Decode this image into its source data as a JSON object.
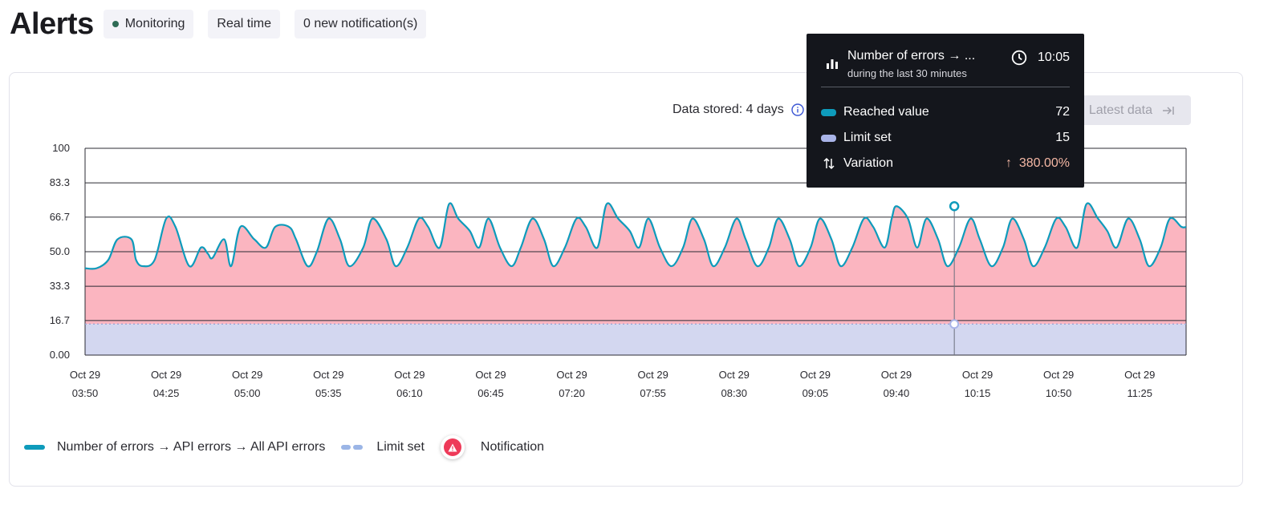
{
  "header": {
    "title": "Alerts",
    "status_label": "Monitoring",
    "mode_label": "Real time",
    "notifications_label": "0 new notification(s)"
  },
  "toolbar": {
    "data_stored": "Data stored: 4 days",
    "latest_data_label": "Latest data"
  },
  "tooltip": {
    "title": "Number of errors → ...",
    "subtitle": "during the last 30 minutes",
    "time": "10:05",
    "rows": [
      {
        "label": "Reached value",
        "value": "72",
        "color": "#0e9bbb"
      },
      {
        "label": "Limit set",
        "value": "15",
        "color": "#a9b4e8"
      },
      {
        "label": "Variation",
        "value": "380.00%",
        "arrow": "↑"
      }
    ]
  },
  "legend": {
    "series_label": "Number of errors → API errors → All API errors",
    "limit_label": "Limit set",
    "notification_label": "Notification"
  },
  "colors": {
    "line": "#0e9bbb",
    "area_fill": "#fbb5c0",
    "limit_fill": "#d3d7f0",
    "limit_line": "#9aa6d8",
    "notification": "#ee3a59"
  },
  "chart_data": {
    "type": "area",
    "y_ticks": [
      "100",
      "83.3",
      "66.7",
      "50.0",
      "33.3",
      "16.7",
      "0.00"
    ],
    "ylim": [
      0,
      100
    ],
    "x_ticks": [
      {
        "date": "Oct 29",
        "time": "03:50"
      },
      {
        "date": "Oct 29",
        "time": "04:25"
      },
      {
        "date": "Oct 29",
        "time": "05:00"
      },
      {
        "date": "Oct 29",
        "time": "05:35"
      },
      {
        "date": "Oct 29",
        "time": "06:10"
      },
      {
        "date": "Oct 29",
        "time": "06:45"
      },
      {
        "date": "Oct 29",
        "time": "07:20"
      },
      {
        "date": "Oct 29",
        "time": "07:55"
      },
      {
        "date": "Oct 29",
        "time": "08:30"
      },
      {
        "date": "Oct 29",
        "time": "09:05"
      },
      {
        "date": "Oct 29",
        "time": "09:40"
      },
      {
        "date": "Oct 29",
        "time": "10:15"
      },
      {
        "date": "Oct 29",
        "time": "10:50"
      },
      {
        "date": "Oct 29",
        "time": "11:25"
      }
    ],
    "x_start": "03:50",
    "x_end": "11:45",
    "limit": 15,
    "highlight": {
      "time": "10:05",
      "value": 72,
      "limit": 15
    },
    "series": [
      {
        "points": [
          [
            "03:50",
            42
          ],
          [
            "03:55",
            42
          ],
          [
            "04:00",
            46
          ],
          [
            "04:04",
            56
          ],
          [
            "04:10",
            56
          ],
          [
            "04:12",
            46
          ],
          [
            "04:15",
            43
          ],
          [
            "04:20",
            46
          ],
          [
            "04:25",
            66
          ],
          [
            "04:29",
            62
          ],
          [
            "04:35",
            43
          ],
          [
            "04:40",
            52
          ],
          [
            "04:43",
            49
          ],
          [
            "04:45",
            47
          ],
          [
            "04:50",
            56
          ],
          [
            "04:53",
            43
          ],
          [
            "04:57",
            62
          ],
          [
            "05:03",
            56
          ],
          [
            "05:08",
            52
          ],
          [
            "05:12",
            62
          ],
          [
            "05:18",
            62
          ],
          [
            "05:21",
            56
          ],
          [
            "05:26",
            43
          ],
          [
            "05:30",
            50
          ],
          [
            "05:35",
            66
          ],
          [
            "05:40",
            56
          ],
          [
            "05:44",
            43
          ],
          [
            "05:50",
            52
          ],
          [
            "05:54",
            66
          ],
          [
            "06:00",
            56
          ],
          [
            "06:04",
            43
          ],
          [
            "06:09",
            52
          ],
          [
            "06:14",
            66
          ],
          [
            "06:18",
            62
          ],
          [
            "06:23",
            52
          ],
          [
            "06:27",
            73
          ],
          [
            "06:31",
            66
          ],
          [
            "06:36",
            60
          ],
          [
            "06:40",
            52
          ],
          [
            "06:44",
            66
          ],
          [
            "06:49",
            52
          ],
          [
            "06:54",
            43
          ],
          [
            "06:58",
            52
          ],
          [
            "07:03",
            66
          ],
          [
            "07:08",
            56
          ],
          [
            "07:12",
            43
          ],
          [
            "07:17",
            52
          ],
          [
            "07:22",
            66
          ],
          [
            "07:26",
            62
          ],
          [
            "07:31",
            52
          ],
          [
            "07:35",
            73
          ],
          [
            "07:40",
            66
          ],
          [
            "07:45",
            60
          ],
          [
            "07:49",
            52
          ],
          [
            "07:53",
            66
          ],
          [
            "07:58",
            52
          ],
          [
            "08:03",
            43
          ],
          [
            "08:08",
            52
          ],
          [
            "08:12",
            66
          ],
          [
            "08:17",
            56
          ],
          [
            "08:21",
            43
          ],
          [
            "08:26",
            52
          ],
          [
            "08:31",
            66
          ],
          [
            "08:35",
            56
          ],
          [
            "08:40",
            43
          ],
          [
            "08:45",
            52
          ],
          [
            "08:49",
            66
          ],
          [
            "08:54",
            56
          ],
          [
            "08:58",
            43
          ],
          [
            "09:03",
            52
          ],
          [
            "09:07",
            66
          ],
          [
            "09:12",
            56
          ],
          [
            "09:16",
            43
          ],
          [
            "09:21",
            52
          ],
          [
            "09:26",
            66
          ],
          [
            "09:30",
            62
          ],
          [
            "09:35",
            52
          ],
          [
            "09:38",
            66
          ],
          [
            "09:40",
            72
          ],
          [
            "09:45",
            66
          ],
          [
            "09:49",
            52
          ],
          [
            "09:53",
            66
          ],
          [
            "09:58",
            56
          ],
          [
            "10:02",
            43
          ],
          [
            "10:07",
            52
          ],
          [
            "10:12",
            66
          ],
          [
            "10:16",
            56
          ],
          [
            "10:21",
            43
          ],
          [
            "10:26",
            52
          ],
          [
            "10:30",
            66
          ],
          [
            "10:35",
            56
          ],
          [
            "10:39",
            43
          ],
          [
            "10:44",
            52
          ],
          [
            "10:49",
            66
          ],
          [
            "10:53",
            62
          ],
          [
            "10:58",
            52
          ],
          [
            "11:02",
            73
          ],
          [
            "11:07",
            66
          ],
          [
            "11:11",
            60
          ],
          [
            "11:15",
            52
          ],
          [
            "11:20",
            66
          ],
          [
            "11:25",
            56
          ],
          [
            "11:29",
            43
          ],
          [
            "11:34",
            52
          ],
          [
            "11:38",
            66
          ],
          [
            "11:43",
            62
          ],
          [
            "11:45",
            62
          ]
        ]
      }
    ]
  }
}
